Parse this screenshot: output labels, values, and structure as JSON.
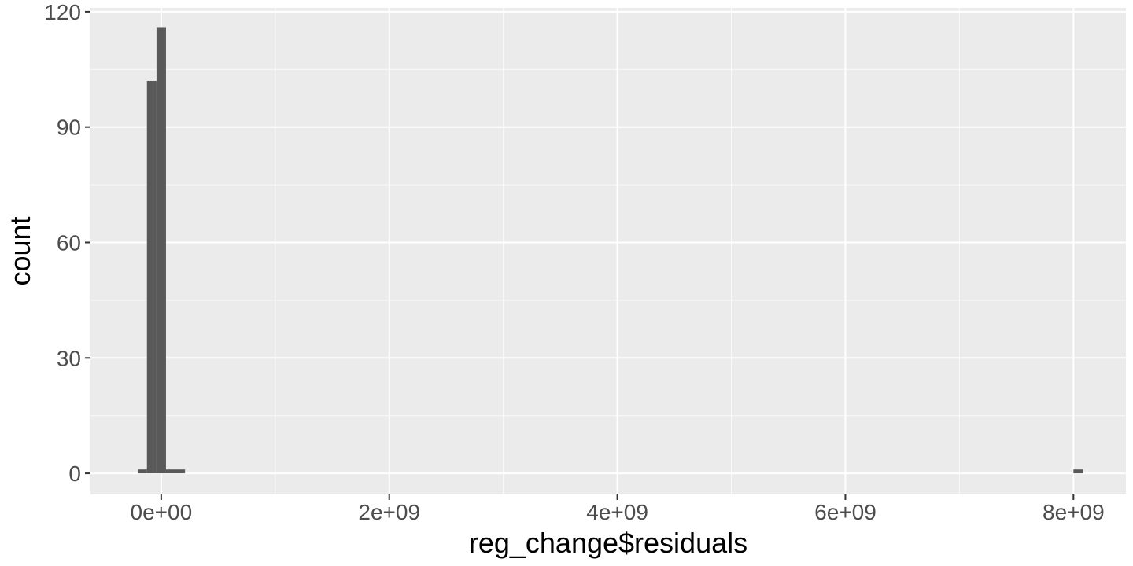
{
  "chart_data": {
    "type": "bar",
    "subtype": "histogram",
    "title": "",
    "xlabel": "reg_change$residuals",
    "ylabel": "count",
    "xlim": [
      -620000000,
      8460000000
    ],
    "ylim": [
      -5.5,
      121
    ],
    "x_ticks": [
      {
        "value": 0,
        "label": "0e+00"
      },
      {
        "value": 2000000000,
        "label": "2e+09"
      },
      {
        "value": 4000000000,
        "label": "4e+09"
      },
      {
        "value": 6000000000,
        "label": "6e+09"
      },
      {
        "value": 8000000000,
        "label": "8e+09"
      }
    ],
    "y_ticks": [
      {
        "value": 0,
        "label": "0"
      },
      {
        "value": 30,
        "label": "30"
      },
      {
        "value": 60,
        "label": "60"
      },
      {
        "value": 90,
        "label": "90"
      },
      {
        "value": 120,
        "label": "120"
      }
    ],
    "bins": [
      {
        "x0": -200000000,
        "x1": -125000000,
        "count": 1
      },
      {
        "x0": -125000000,
        "x1": -41000000,
        "count": 102
      },
      {
        "x0": -41000000,
        "x1": 42000000,
        "count": 116
      },
      {
        "x0": 42000000,
        "x1": 209000000,
        "count": 1
      },
      {
        "x0": 8000000000,
        "x1": 8083000000,
        "count": 1
      }
    ],
    "grid": true,
    "colors": {
      "panel_background": "#ebebeb",
      "grid_major": "#ffffff",
      "bar_fill": "#595959",
      "tick_text": "#4d4d4d",
      "axis_text": "#000000"
    }
  }
}
